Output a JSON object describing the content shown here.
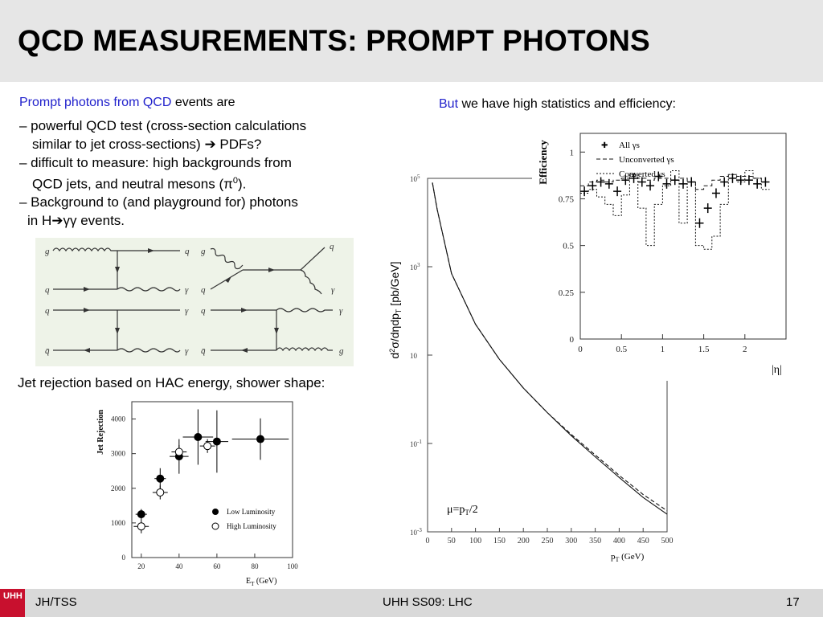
{
  "slide": {
    "title": "QCD MEASUREMENTS: PROMPT PHOTONS",
    "left_intro_blue": "Prompt photons from QCD",
    "left_intro_rest": " events are",
    "bullets": [
      "– powerful QCD test (cross-section calculations",
      "similar to jet cross-sections)",
      " PDFs?",
      "– difficult to measure: high backgrounds from",
      "QCD jets, and neutral mesons (π",
      "0",
      ").",
      "– Background to (and playground for) photons",
      "in H",
      "γγ events."
    ],
    "jet_rejection_caption": "Jet rejection based on HAC energy, shower shape:",
    "right_intro_blue": "But",
    "right_intro_rest": " we have high statistics and efficiency:"
  },
  "feynman_labels": {
    "g": "g",
    "q": "q",
    "gamma": "γ",
    "qbar": "q̄"
  },
  "xsec_plot": {
    "ylabel_pre": "d",
    "ylabel_sup": "2",
    "ylabel_mid": "σ/dηdp",
    "ylabel_sub": "T",
    "ylabel_post": " [pb/GeV]",
    "xlabel": "p",
    "xlabel_sub": "T",
    "xlabel_unit": " (GeV)",
    "scale_label": "μ=p",
    "scale_sub": "T",
    "scale_post": "/2",
    "y_ticks": [
      {
        "base": "10",
        "exp": "5"
      },
      {
        "base": "10",
        "exp": "3"
      },
      {
        "base": "10",
        "exp": ""
      },
      {
        "base": "10",
        "exp": "-1"
      },
      {
        "base": "10",
        "exp": "-3"
      }
    ],
    "x_ticks": [
      "0",
      "50",
      "100",
      "150",
      "200",
      "250",
      "300",
      "350",
      "400",
      "450",
      "500"
    ]
  },
  "efficiency_plot": {
    "ylabel": "Efficiency",
    "xlabel": "|η|",
    "legend": [
      "All γs",
      "Unconverted γs",
      "Converted γs"
    ],
    "y_ticks": [
      "1",
      "0.75",
      "0.5",
      "0.25",
      "0"
    ],
    "x_ticks": [
      "0",
      "0.5",
      "1",
      "1.5",
      "2"
    ]
  },
  "jetrej_plot": {
    "ylabel": "Jet Rejection",
    "xlabel": "E",
    "xlabel_sub": "T",
    "xlabel_unit": " (GeV)",
    "legend": [
      "Low Luminosity",
      "High Luminosity"
    ],
    "y_ticks": [
      "4000",
      "3000",
      "2000",
      "1000",
      "0"
    ],
    "x_ticks": [
      "20",
      "40",
      "60",
      "80",
      "100"
    ]
  },
  "footer": {
    "logo": "UHH",
    "left": "JH/TSS",
    "center": "UHH SS09: LHC",
    "page": "17"
  },
  "colors": {
    "accent_blue": "#2222cc",
    "header_bg": "#e6e6e6",
    "footer_bg": "#d9d9d9",
    "logo_red": "#c8102e"
  },
  "chart_data": [
    {
      "type": "line",
      "ylog": true,
      "x": [
        10,
        20,
        50,
        100,
        150,
        200,
        250,
        300,
        350,
        400,
        450,
        500
      ],
      "series": [
        {
          "values": [
            80000,
            20000,
            700,
            50,
            8,
            1.8,
            0.5,
            0.15,
            0.05,
            0.017,
            0.006,
            0.0025
          ]
        },
        {
          "values": [
            80000,
            20000,
            700,
            50,
            8,
            1.8,
            0.5,
            0.16,
            0.055,
            0.019,
            0.007,
            0.003
          ]
        }
      ],
      "xlim": [
        0,
        500
      ],
      "ylim": [
        0.001,
        100000
      ]
    },
    {
      "type": "scatter",
      "x": [
        0.05,
        0.15,
        0.25,
        0.35,
        0.45,
        0.55,
        0.65,
        0.75,
        0.85,
        0.95,
        1.05,
        1.15,
        1.25,
        1.35,
        1.45,
        1.55,
        1.65,
        1.75,
        1.85,
        1.95,
        2.05,
        2.15,
        2.25
      ],
      "series": [
        {
          "name": "All γs",
          "values": [
            0.79,
            0.82,
            0.84,
            0.83,
            0.79,
            0.85,
            0.86,
            0.84,
            0.82,
            0.87,
            0.83,
            0.85,
            0.83,
            0.84,
            0.62,
            0.7,
            0.78,
            0.84,
            0.86,
            0.85,
            0.85,
            0.83,
            0.84
          ]
        },
        {
          "name": "Unconverted γs",
          "values": [
            0.82,
            0.84,
            0.85,
            0.84,
            0.85,
            0.86,
            0.87,
            0.86,
            0.85,
            0.86,
            0.86,
            0.85,
            0.86,
            0.84,
            0.8,
            0.82,
            0.85,
            0.87,
            0.88,
            0.87,
            0.87,
            0.86,
            0.84
          ]
        },
        {
          "name": "Converted γs",
          "values": [
            0.78,
            0.8,
            0.76,
            0.72,
            0.66,
            0.77,
            0.88,
            0.7,
            0.5,
            0.72,
            0.82,
            0.9,
            0.62,
            0.84,
            0.5,
            0.48,
            0.55,
            0.72,
            0.88,
            0.84,
            0.9,
            0.86,
            0.8
          ]
        }
      ],
      "xlim": [
        0,
        2.5
      ],
      "ylim": [
        0,
        1.1
      ]
    },
    {
      "type": "scatter",
      "series": [
        {
          "name": "Low Luminosity",
          "x": [
            20,
            30,
            40,
            50,
            60,
            83
          ],
          "values": [
            1250,
            2280,
            2920,
            3480,
            3350,
            3420
          ]
        },
        {
          "name": "High Luminosity",
          "x": [
            20,
            30,
            40,
            55
          ],
          "values": [
            900,
            1880,
            3050,
            3220
          ]
        }
      ],
      "xlim": [
        15,
        100
      ],
      "ylim": [
        0,
        4500
      ]
    }
  ]
}
